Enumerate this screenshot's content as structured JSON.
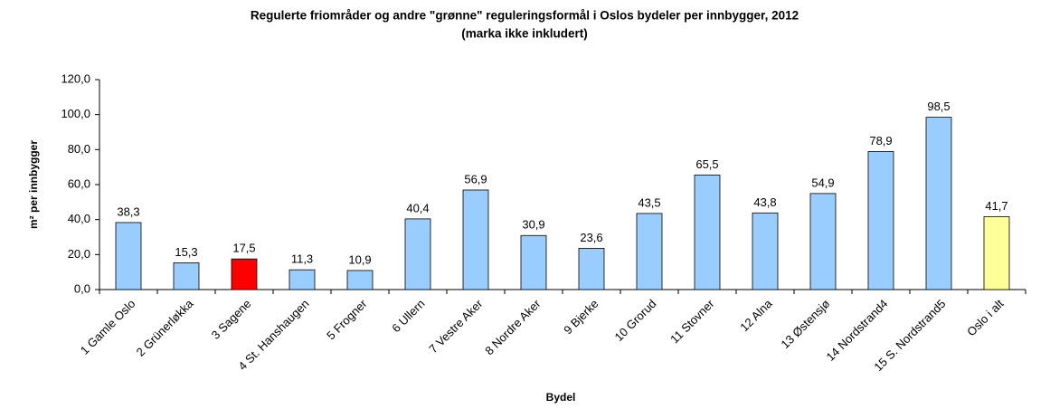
{
  "chart_data": {
    "type": "bar",
    "title": "Regulerte friområder og andre \"grønne\" reguleringsformål i Oslos bydeler per innbygger, 2012",
    "subtitle": "(marka ikke inkludert)",
    "x_label": "Bydel",
    "y_label": "m² per innbygger",
    "categories": [
      "1 Gamle Oslo",
      "2 Grünerløkka",
      "3 Sagene",
      "4 St. Hanshaugen",
      "5 Frogner",
      "6 Ullern",
      "7 Vestre Aker",
      "8 Nordre Aker",
      "9 Bjerke",
      "10 Grorud",
      "11 Stovner",
      "12 Alna",
      "13 Østensjø",
      "14 Nordstrand4",
      "15 S. Nordstrand5",
      "Oslo i alt"
    ],
    "values": [
      38.3,
      15.3,
      17.5,
      11.3,
      10.9,
      40.4,
      56.9,
      30.9,
      23.6,
      43.5,
      65.5,
      43.8,
      54.9,
      78.9,
      98.5,
      41.7
    ],
    "value_labels": [
      "38,3",
      "15,3",
      "17,5",
      "11,3",
      "10,9",
      "40,4",
      "56,9",
      "30,9",
      "23,6",
      "43,5",
      "65,5",
      "43,8",
      "54,9",
      "78,9",
      "98,5",
      "41,7"
    ],
    "colors": [
      "#99ccff",
      "#99ccff",
      "#ff0000",
      "#99ccff",
      "#99ccff",
      "#99ccff",
      "#99ccff",
      "#99ccff",
      "#99ccff",
      "#99ccff",
      "#99ccff",
      "#99ccff",
      "#99ccff",
      "#99ccff",
      "#99ccff",
      "#ffff99"
    ],
    "ylim": [
      0,
      120
    ],
    "yticks": [
      {
        "value": 0,
        "label": "0,0"
      },
      {
        "value": 20,
        "label": "20,0"
      },
      {
        "value": 40,
        "label": "40,0"
      },
      {
        "value": 60,
        "label": "60,0"
      },
      {
        "value": 80,
        "label": "80,0"
      },
      {
        "value": 100,
        "label": "100,0"
      },
      {
        "value": 120,
        "label": "120,0"
      }
    ],
    "grid": false
  }
}
